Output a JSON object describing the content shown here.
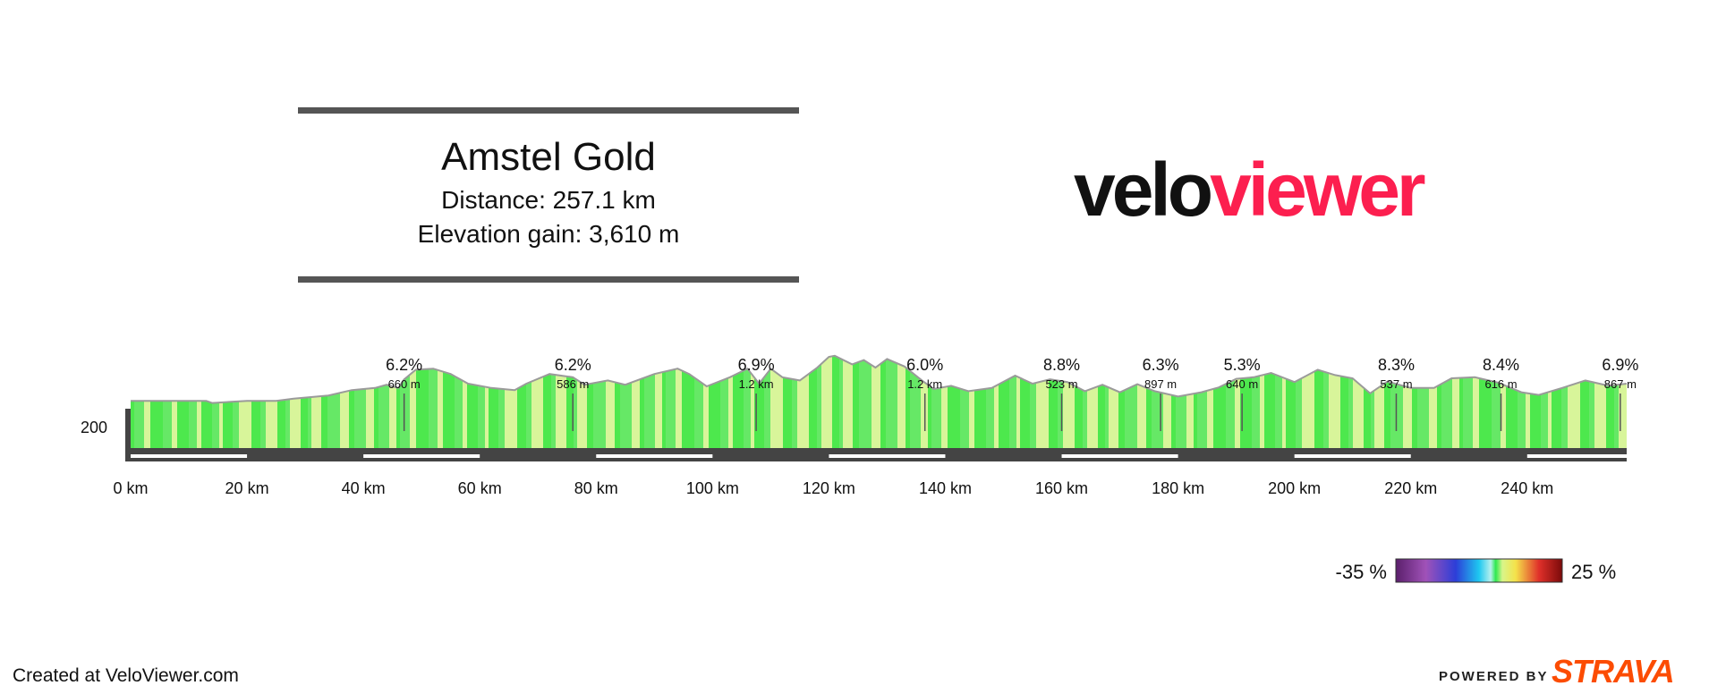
{
  "header": {
    "route_name": "Amstel Gold",
    "distance_text": "Distance: 257.1 km",
    "elevation_text": "Elevation gain: 3,610 m"
  },
  "logo": {
    "part1": "velo",
    "part2": "viewer",
    "color1": "#111111",
    "color2": "#fc1f4f"
  },
  "footer": {
    "created": "Created at VeloViewer.com",
    "powered": "POWERED BY",
    "brand": "STRAVA",
    "brand_color": "#fc4c02"
  },
  "chart_data": {
    "type": "area",
    "title": "Amstel Gold",
    "x_unit": "km",
    "xlim": [
      0,
      257.1
    ],
    "x_ticks": [
      0,
      20,
      40,
      60,
      80,
      100,
      120,
      140,
      160,
      180,
      200,
      220,
      240
    ],
    "x_tick_labels": [
      "0 km",
      "20 km",
      "40 km",
      "60 km",
      "80 km",
      "100 km",
      "120 km",
      "140 km",
      "160 km",
      "180 km",
      "200 km",
      "220 km",
      "240 km"
    ],
    "y_tick_labels": [
      "200"
    ],
    "y_ticks": [
      200
    ],
    "elevation_profile": {
      "x": [
        0,
        13,
        14,
        20,
        25,
        28,
        34,
        38,
        42,
        44,
        46,
        47,
        49,
        52,
        55,
        58,
        62,
        66,
        68,
        72,
        76,
        78,
        82,
        85,
        90,
        94,
        96,
        99,
        103,
        106,
        108,
        110,
        112,
        115,
        118,
        120,
        121,
        124,
        126,
        128,
        130,
        133,
        136,
        138,
        141,
        144,
        148,
        152,
        155,
        158,
        161,
        164,
        167,
        170,
        173,
        176,
        180,
        184,
        187,
        190,
        193,
        196,
        200,
        204,
        207,
        210,
        213,
        216,
        220,
        224,
        227,
        231,
        235,
        239,
        242,
        246,
        250,
        254,
        257.1
      ],
      "y": [
        88,
        88,
        84,
        88,
        88,
        92,
        98,
        108,
        112,
        118,
        112,
        128,
        146,
        148,
        138,
        120,
        112,
        108,
        120,
        138,
        132,
        118,
        126,
        118,
        138,
        148,
        138,
        115,
        132,
        148,
        120,
        148,
        132,
        126,
        150,
        170,
        172,
        156,
        164,
        150,
        166,
        152,
        126,
        110,
        116,
        106,
        112,
        135,
        120,
        128,
        123,
        106,
        118,
        104,
        119,
        106,
        96,
        104,
        113,
        129,
        132,
        140,
        123,
        146,
        136,
        130,
        102,
        124,
        112,
        112,
        130,
        132,
        122,
        104,
        99,
        112,
        126,
        116,
        120
      ]
    },
    "climb_annotations": [
      {
        "x_km": 47,
        "grade": "6.2%",
        "length": "660 m"
      },
      {
        "x_km": 76,
        "grade": "6.2%",
        "length": "586 m"
      },
      {
        "x_km": 107.5,
        "grade": "6.9%",
        "length": "1.2 km"
      },
      {
        "x_km": 136.5,
        "grade": "6.0%",
        "length": "1.2 km"
      },
      {
        "x_km": 160,
        "grade": "8.8%",
        "length": "523 m"
      },
      {
        "x_km": 177,
        "grade": "6.3%",
        "length": "897 m"
      },
      {
        "x_km": 191,
        "grade": "5.3%",
        "length": "640 m"
      },
      {
        "x_km": 217.5,
        "grade": "8.3%",
        "length": "537 m"
      },
      {
        "x_km": 235.5,
        "grade": "8.4%",
        "length": "616 m"
      },
      {
        "x_km": 256,
        "grade": "6.9%",
        "length": "867 m"
      }
    ],
    "gradient_scale": {
      "min_label": "-35 %",
      "max_label": "25 %",
      "min": -35,
      "max": 25
    }
  }
}
